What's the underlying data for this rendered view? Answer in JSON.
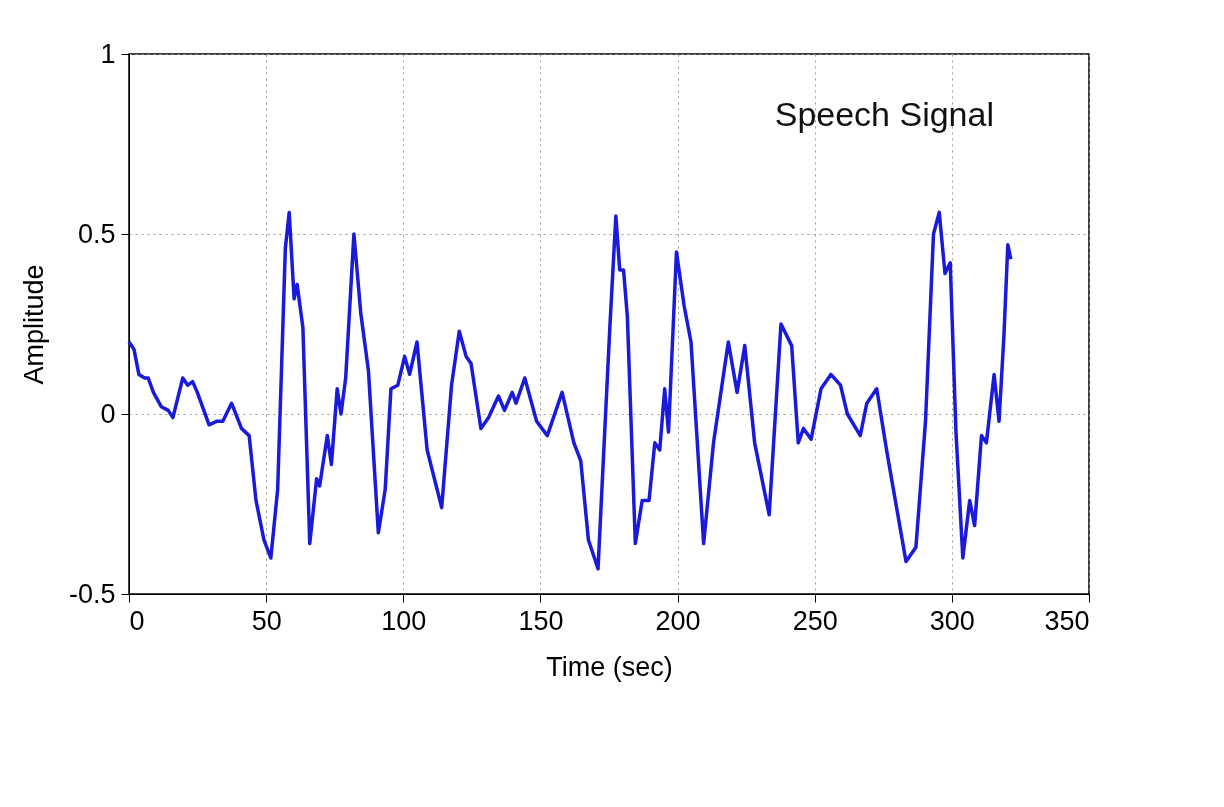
{
  "chart_data": {
    "type": "line",
    "xlabel": "Time (sec)",
    "ylabel": "Amplitude",
    "annotations": [
      "Speech Signal"
    ],
    "xlim": [
      0,
      350
    ],
    "xticks": [
      0,
      50,
      100,
      150,
      200,
      250,
      300,
      350
    ],
    "ylim": [
      -0.5,
      1
    ],
    "yticks": [
      -0.5,
      0,
      0.5,
      1
    ],
    "grid": true,
    "line_style": "solid",
    "marker": "none",
    "series": [
      {
        "color": "#1a1adc",
        "x": [
          0,
          1.8,
          3.6,
          5.7,
          7,
          8.9,
          11.8,
          14.3,
          16,
          19.6,
          21.4,
          23.2,
          24.9,
          29.2,
          32.1,
          34.2,
          37.4,
          41,
          43.8,
          46.3,
          49.2,
          51.7,
          54.2,
          57,
          58.4,
          60.2,
          61.3,
          63.4,
          65.9,
          68.4,
          69.5,
          72.3,
          73.8,
          75.9,
          77.3,
          79,
          82,
          84.5,
          87.3,
          90.9,
          93.4,
          95.5,
          98,
          100.5,
          102.3,
          105,
          108.7,
          114,
          117.6,
          120.4,
          122.9,
          124.7,
          128.3,
          131.1,
          134.7,
          136.9,
          139.7,
          141.1,
          144.3,
          148.6,
          152.5,
          157.9,
          162.2,
          164.7,
          167.5,
          171,
          175.3,
          177.5,
          178.9,
          180.3,
          181.7,
          184.6,
          187.1,
          189.6,
          191.7,
          193.5,
          195.3,
          196.7,
          199.6,
          202.4,
          204.9,
          209.5,
          213.1,
          218.5,
          221.7,
          224.5,
          228.1,
          233.4,
          237.7,
          241.6,
          244,
          245.9,
          248.7,
          252.3,
          255.9,
          259.4,
          261.9,
          266.6,
          269,
          272.6,
          276.2,
          278.7,
          283.3,
          286.9,
          290.4,
          293.3,
          295.4,
          297.5,
          299.4,
          301.5,
          304,
          306.5,
          308.3,
          310.8,
          312.6,
          315.4,
          317.2,
          319,
          320.4,
          321.5
        ],
        "values": [
          0.2,
          0.18,
          0.11,
          0.1,
          0.1,
          0.06,
          0.02,
          0.01,
          -0.01,
          0.1,
          0.08,
          0.09,
          0.06,
          -0.03,
          -0.02,
          -0.02,
          0.03,
          -0.04,
          -0.06,
          -0.24,
          -0.35,
          -0.4,
          -0.21,
          0.46,
          0.56,
          0.32,
          0.36,
          0.24,
          -0.36,
          -0.18,
          -0.2,
          -0.06,
          -0.14,
          0.07,
          0.0,
          0.1,
          0.5,
          0.28,
          0.12,
          -0.33,
          -0.21,
          0.07,
          0.08,
          0.16,
          0.11,
          0.2,
          -0.1,
          -0.26,
          0.08,
          0.23,
          0.16,
          0.14,
          -0.04,
          -0.01,
          0.05,
          0.01,
          0.06,
          0.03,
          0.1,
          -0.02,
          -0.06,
          0.06,
          -0.08,
          -0.13,
          -0.35,
          -0.43,
          0.24,
          0.55,
          0.4,
          0.4,
          0.27,
          -0.36,
          -0.24,
          -0.24,
          -0.08,
          -0.1,
          0.07,
          -0.05,
          0.45,
          0.3,
          0.2,
          -0.36,
          -0.08,
          0.2,
          0.06,
          0.19,
          -0.08,
          -0.28,
          0.25,
          0.19,
          -0.08,
          -0.04,
          -0.07,
          0.07,
          0.11,
          0.08,
          0.0,
          -0.06,
          0.03,
          0.07,
          -0.1,
          -0.21,
          -0.41,
          -0.37,
          -0.02,
          0.5,
          0.56,
          0.39,
          0.42,
          -0.05,
          -0.4,
          -0.24,
          -0.31,
          -0.06,
          -0.08,
          0.11,
          -0.02,
          0.22,
          0.47,
          0.43
        ]
      }
    ]
  }
}
